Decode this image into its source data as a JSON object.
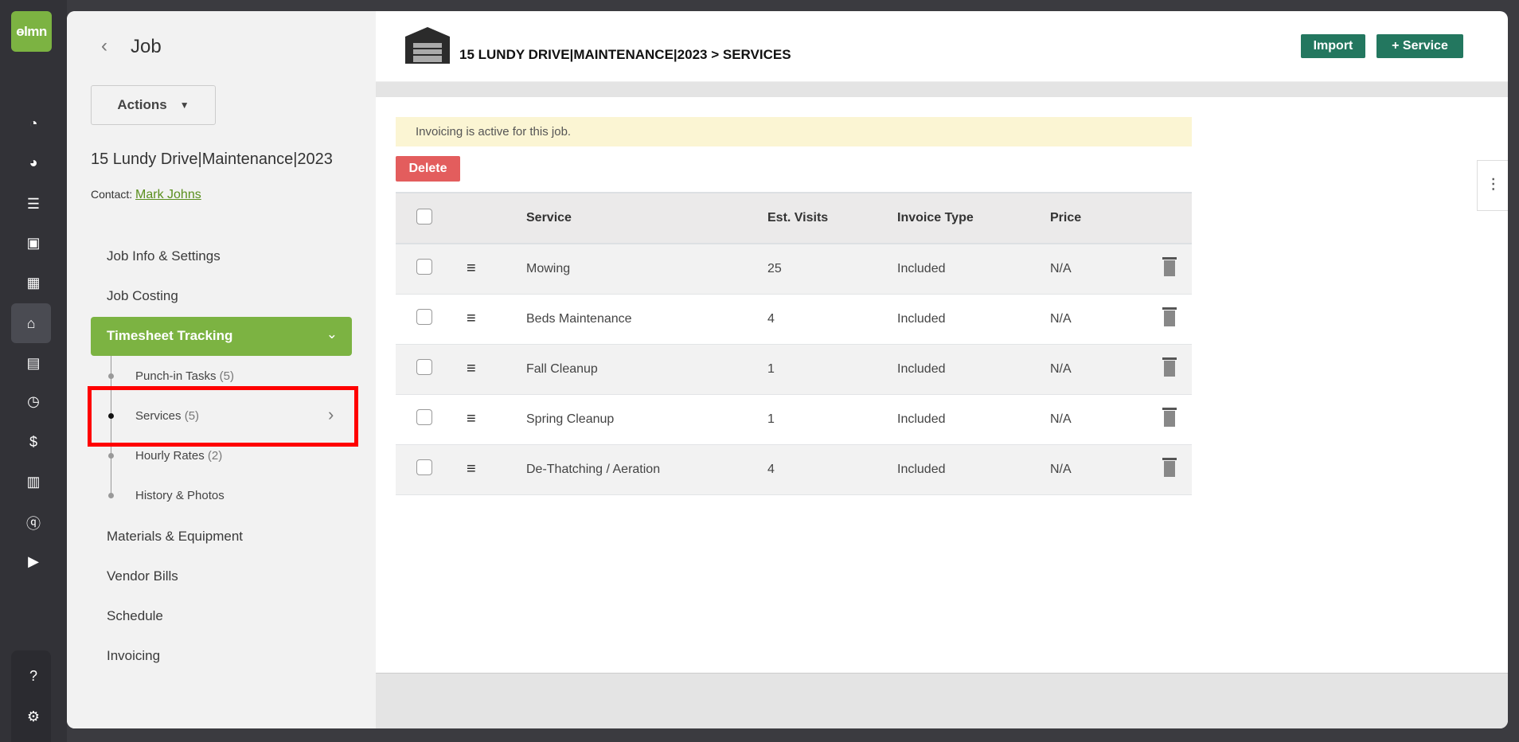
{
  "app": {
    "logo_text": "lmn"
  },
  "rail": {
    "icons": [
      "dashboard-icon",
      "pie-chart-icon",
      "list-icon",
      "contact-card-icon",
      "calculator-icon",
      "warehouse-icon",
      "calendar-icon",
      "clock-icon",
      "invoice-icon",
      "report-icon",
      "quickbooks-icon",
      "play-icon"
    ],
    "active": "warehouse-icon",
    "bottom": [
      "help-icon",
      "gear-icon"
    ]
  },
  "left": {
    "title": "Job",
    "actions_label": "Actions",
    "job_name": "15 Lundy Drive|Maintenance|2023",
    "contact_label": "Contact:",
    "contact_name": "Mark Johns",
    "nav": {
      "job_info": "Job Info & Settings",
      "job_costing": "Job Costing",
      "timesheet": "Timesheet Tracking",
      "sub": [
        {
          "label": "Punch-in Tasks",
          "count": "(5)"
        },
        {
          "label": "Services",
          "count": "(5)"
        },
        {
          "label": "Hourly Rates",
          "count": "(2)"
        },
        {
          "label": "History & Photos",
          "count": ""
        }
      ],
      "materials": "Materials & Equipment",
      "vendor": "Vendor Bills",
      "schedule": "Schedule",
      "invoicing": "Invoicing"
    }
  },
  "header": {
    "title": "15 LUNDY DRIVE|MAINTENANCE|2023 > SERVICES",
    "import": "Import",
    "add_service": "+ Service"
  },
  "notice": "Invoicing is active for this job.",
  "delete_label": "Delete",
  "table": {
    "headers": [
      "Service",
      "Est. Visits",
      "Invoice Type",
      "Price"
    ],
    "rows": [
      {
        "service": "Mowing",
        "visits": "25",
        "type": "Included",
        "price": "N/A"
      },
      {
        "service": "Beds Maintenance",
        "visits": "4",
        "type": "Included",
        "price": "N/A"
      },
      {
        "service": "Fall Cleanup",
        "visits": "1",
        "type": "Included",
        "price": "N/A"
      },
      {
        "service": "Spring Cleanup",
        "visits": "1",
        "type": "Included",
        "price": "N/A"
      },
      {
        "service": "De-Thatching / Aeration",
        "visits": "4",
        "type": "Included",
        "price": "N/A"
      }
    ]
  },
  "colors": {
    "brand_green": "#7cb342",
    "button_green": "#23775f",
    "delete_red": "#e35d5d",
    "notice_bg": "#fbf5d3",
    "highlight": "#ff0000"
  }
}
